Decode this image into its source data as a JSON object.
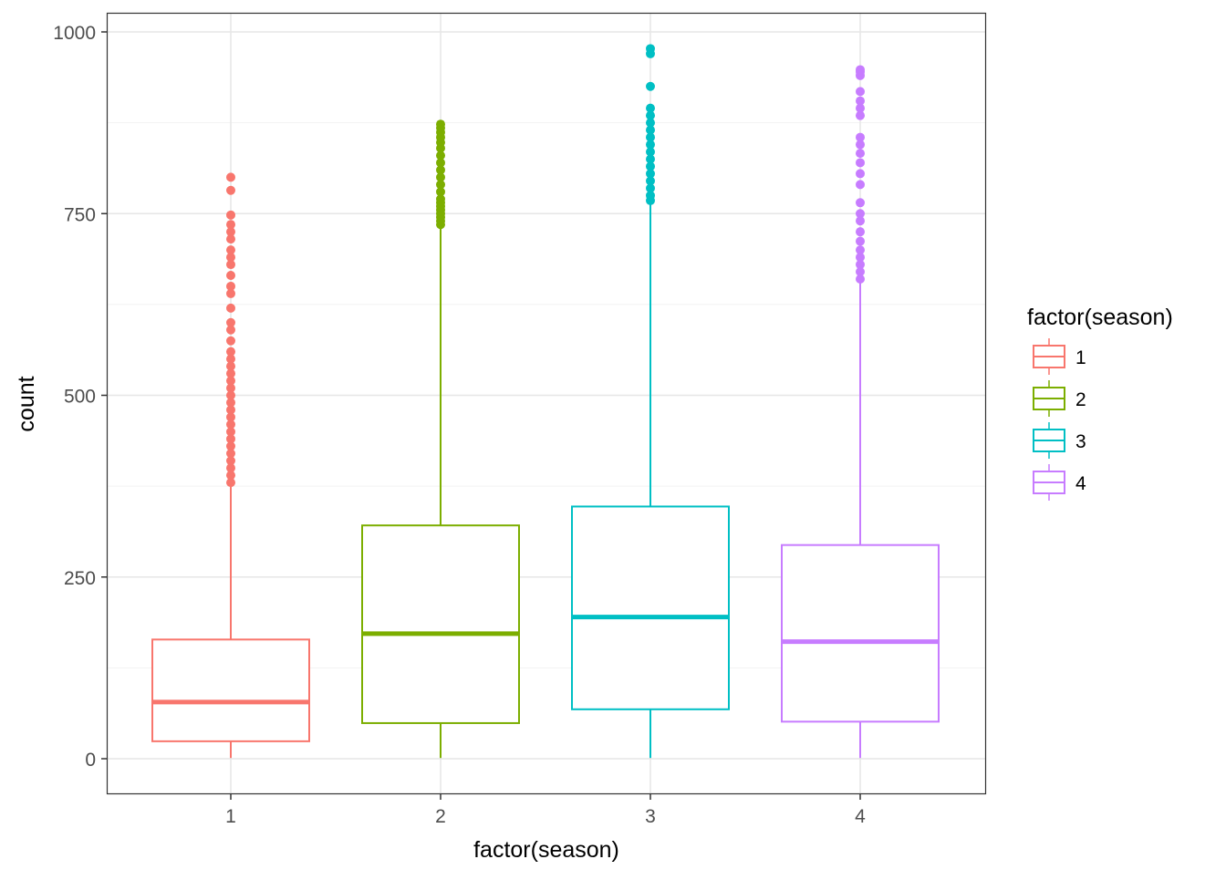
{
  "chart_data": {
    "type": "boxplot",
    "xlabel": "factor(season)",
    "ylabel": "count",
    "categories": [
      "1",
      "2",
      "3",
      "4"
    ],
    "ylim": [
      -48,
      1028
    ],
    "yticks": [
      0,
      250,
      500,
      750,
      1000
    ],
    "grid": true,
    "legend": {
      "title": "factor(season)",
      "position": "right",
      "entries": [
        "1",
        "2",
        "3",
        "4"
      ]
    },
    "colors": [
      "#F8766D",
      "#7CAE00",
      "#00BFC4",
      "#C77CFF"
    ],
    "series": [
      {
        "category": "1",
        "min": 1,
        "q1": 24,
        "median": 78,
        "q3": 164,
        "whisker_high": 374,
        "outliers": [
          380,
          390,
          400,
          410,
          420,
          430,
          440,
          450,
          460,
          470,
          480,
          490,
          500,
          510,
          520,
          530,
          540,
          550,
          560,
          575,
          590,
          600,
          620,
          640,
          650,
          665,
          680,
          690,
          700,
          715,
          725,
          735,
          748,
          782,
          800
        ]
      },
      {
        "category": "2",
        "min": 1,
        "q1": 49,
        "median": 172,
        "q3": 321,
        "whisker_high": 730,
        "outliers": [
          735,
          740,
          745,
          750,
          755,
          760,
          765,
          770,
          780,
          790,
          800,
          810,
          820,
          830,
          840,
          848,
          855,
          862,
          868,
          873
        ]
      },
      {
        "category": "3",
        "min": 1,
        "q1": 68,
        "median": 195,
        "q3": 347,
        "whisker_high": 763,
        "outliers": [
          768,
          775,
          785,
          795,
          805,
          815,
          825,
          835,
          845,
          855,
          865,
          875,
          885,
          895,
          925,
          970,
          977
        ]
      },
      {
        "category": "4",
        "min": 1,
        "q1": 51,
        "median": 161,
        "q3": 294,
        "whisker_high": 656,
        "outliers": [
          660,
          670,
          680,
          690,
          700,
          712,
          725,
          740,
          750,
          765,
          790,
          805,
          820,
          833,
          845,
          855,
          885,
          895,
          905,
          918,
          940,
          945,
          948
        ]
      }
    ]
  }
}
